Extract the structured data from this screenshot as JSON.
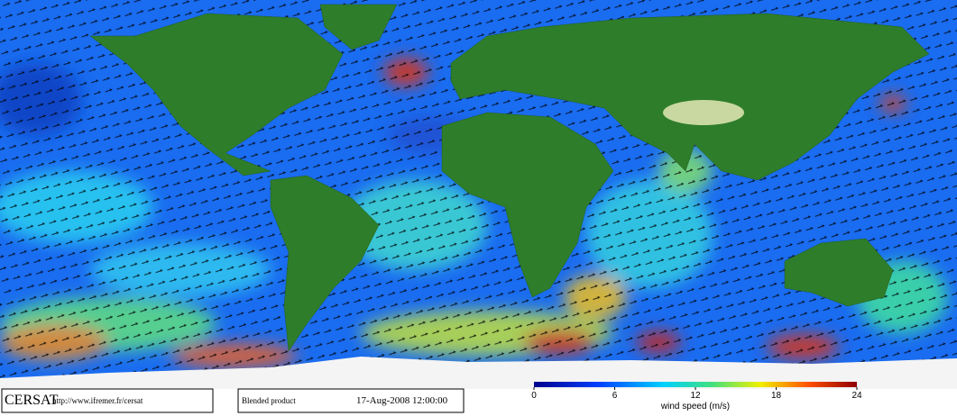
{
  "footer": {
    "logo": "CERSAT",
    "url": "http://www.ifremer.fr/cersat",
    "product": "Blended product",
    "date": "17-Aug-2008 12:00:00"
  },
  "colorbar": {
    "title": "wind speed (m/s)",
    "range": [
      0,
      24
    ],
    "ticks": [
      0,
      6,
      12,
      18,
      24
    ]
  }
}
